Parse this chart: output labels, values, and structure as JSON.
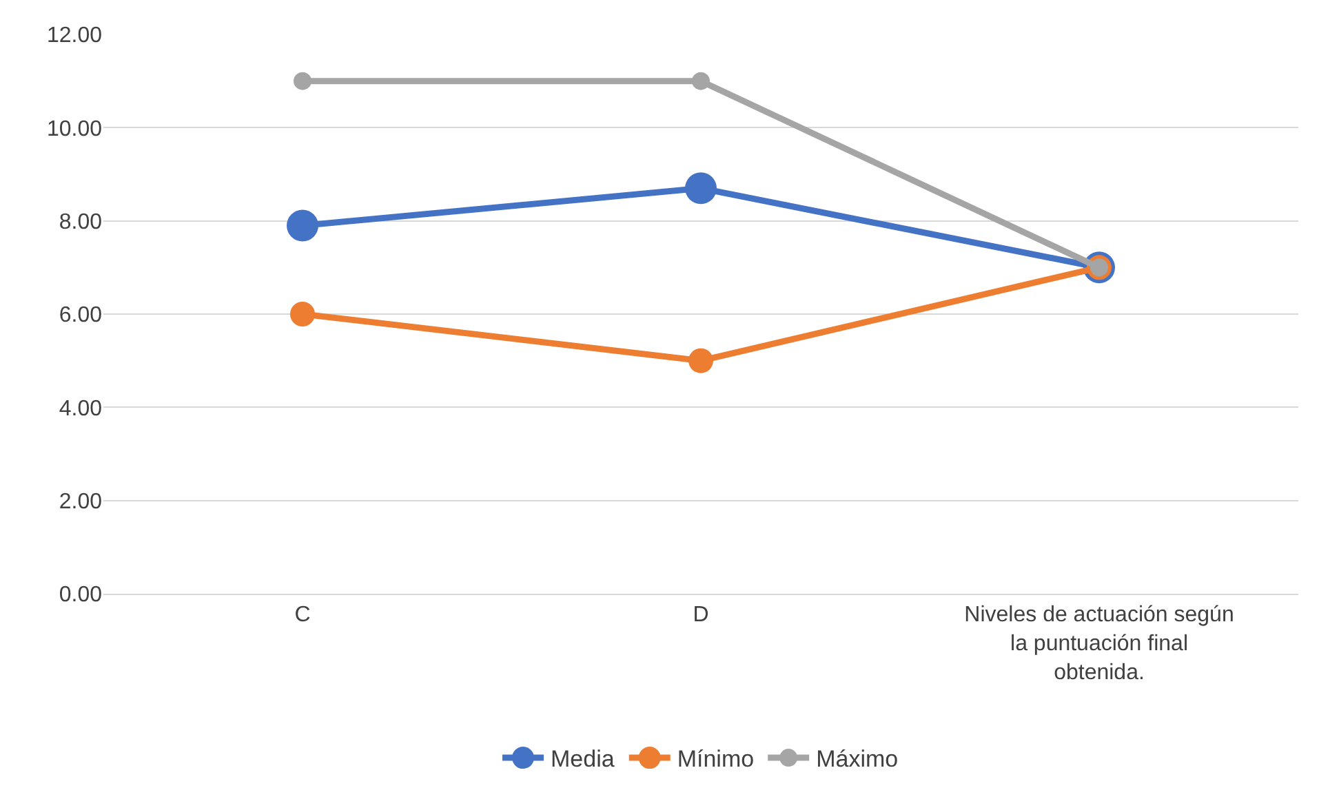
{
  "chart_data": {
    "type": "line",
    "categories": [
      "C",
      "D",
      "Niveles de actuación según la puntuación final obtenida."
    ],
    "series": [
      {
        "name": "Media",
        "color": "#4472c4",
        "values": [
          7.9,
          8.7,
          7
        ]
      },
      {
        "name": "Mínimo",
        "color": "#ed7d31",
        "values": [
          6,
          5,
          7
        ]
      },
      {
        "name": "Máximo",
        "color": "#a5a5a5",
        "values": [
          11,
          11,
          7
        ]
      }
    ],
    "ylim": [
      0,
      12
    ],
    "yticks": [
      {
        "value": 0,
        "label": "0.00"
      },
      {
        "value": 2,
        "label": "2.00"
      },
      {
        "value": 4,
        "label": "4.00"
      },
      {
        "value": 6,
        "label": "6.00"
      },
      {
        "value": 8,
        "label": "8.00"
      },
      {
        "value": 10,
        "label": "10.00"
      },
      {
        "value": 12,
        "label": "12.00"
      }
    ],
    "grid": "y",
    "legend": "bottom",
    "marker": "circle",
    "line_style": "solid"
  }
}
